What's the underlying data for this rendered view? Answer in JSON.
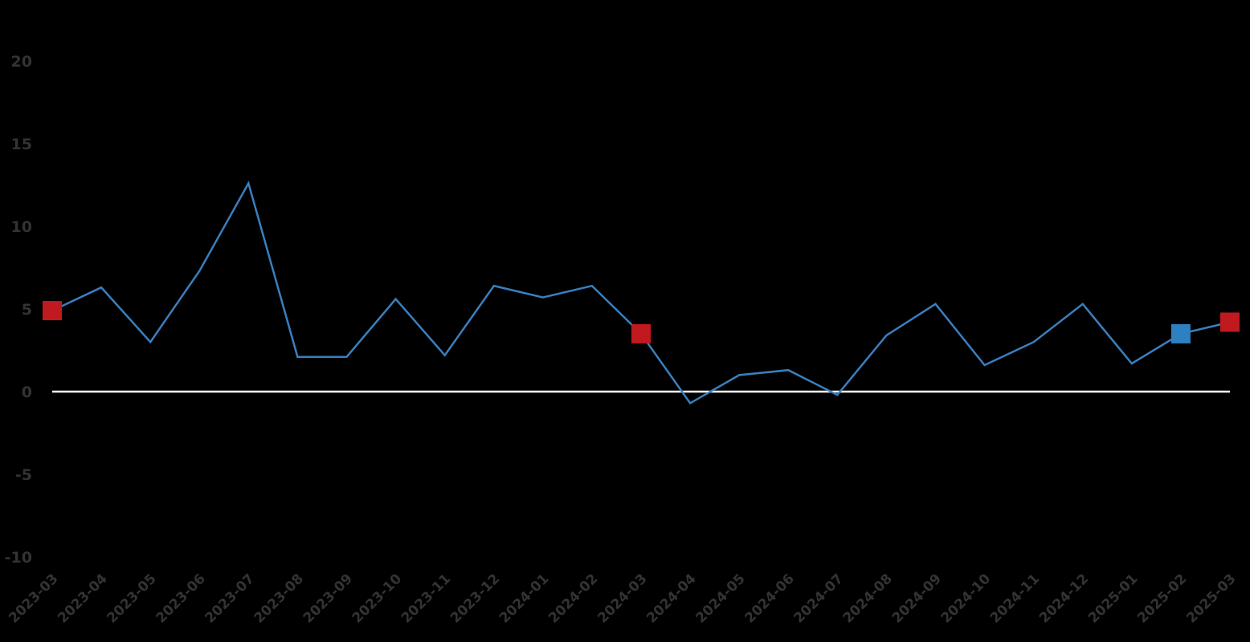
{
  "chart_data": {
    "type": "line",
    "title": "",
    "xlabel": "",
    "ylabel": "",
    "ylim": [
      -10,
      20
    ],
    "yticks": [
      -10,
      -5,
      0,
      5,
      10,
      15,
      20
    ],
    "grid": false,
    "zero_line": true,
    "categories": [
      "2023-03",
      "2023-04",
      "2023-05",
      "2023-06",
      "2023-07",
      "2023-08",
      "2023-09",
      "2023-10",
      "2023-11",
      "2023-12",
      "2024-01",
      "2024-02",
      "2024-03",
      "2024-04",
      "2024-05",
      "2024-06",
      "2024-07",
      "2024-08",
      "2024-09",
      "2024-10",
      "2024-11",
      "2024-12",
      "2025-01",
      "2025-02",
      "2025-03"
    ],
    "series": [
      {
        "values": [
          4.9,
          6.3,
          3.0,
          7.3,
          12.6,
          2.1,
          2.1,
          5.6,
          2.2,
          6.4,
          5.7,
          6.4,
          3.5,
          -0.7,
          1.0,
          1.3,
          -0.2,
          3.4,
          5.3,
          1.6,
          3.0,
          5.3,
          1.7,
          3.5,
          4.2
        ],
        "color": "#3a7fbf"
      }
    ],
    "highlight_points": [
      {
        "category": "2023-03",
        "value": 4.9,
        "color": "#c0191f"
      },
      {
        "category": "2024-03",
        "value": 3.5,
        "color": "#c0191f"
      },
      {
        "category": "2025-02",
        "value": 3.5,
        "color": "#2f80c1"
      },
      {
        "category": "2025-03",
        "value": 4.2,
        "color": "#c0191f"
      }
    ],
    "zero_line_color": "#ffffff",
    "tick_color": "#333333"
  }
}
